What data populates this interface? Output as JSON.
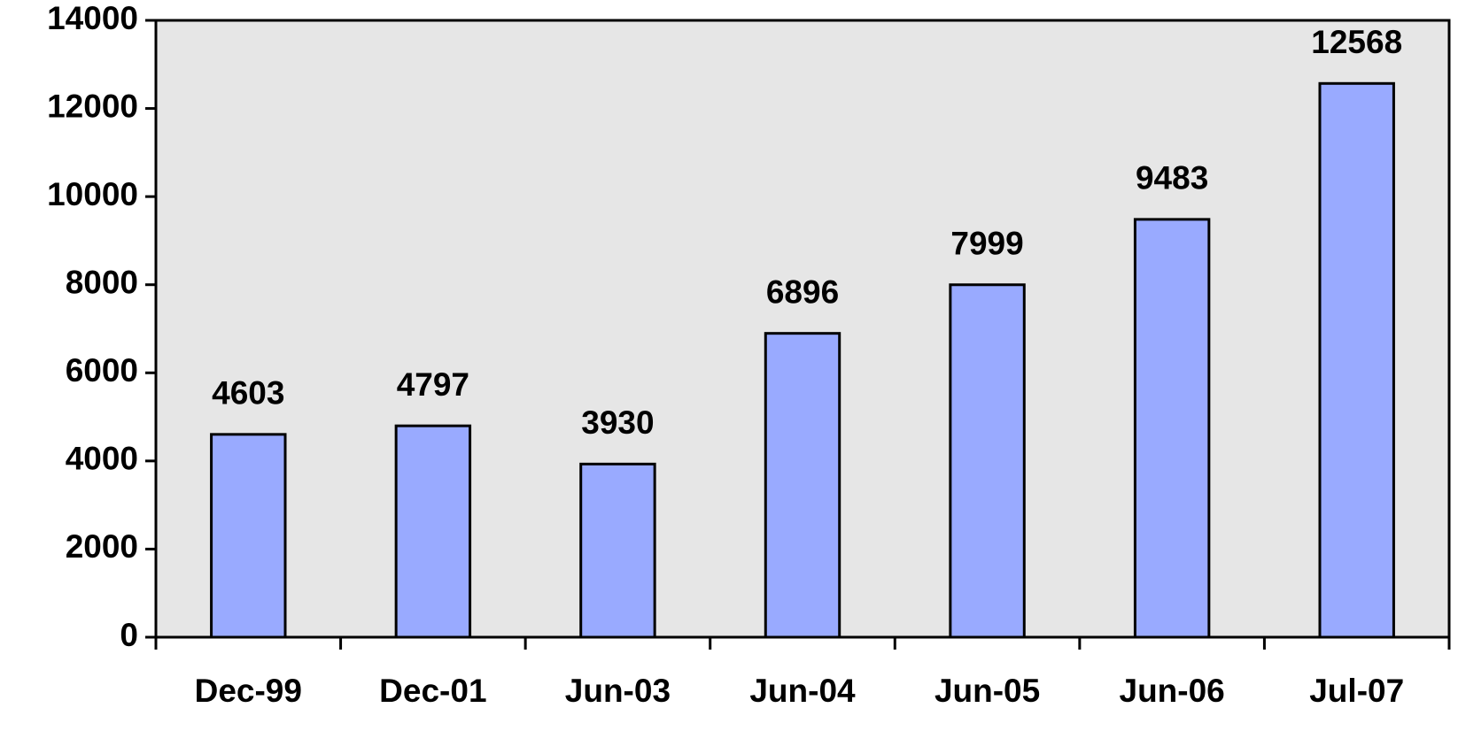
{
  "chart_data": {
    "type": "bar",
    "categories": [
      "Dec-99",
      "Dec-01",
      "Jun-03",
      "Jun-04",
      "Jun-05",
      "Jun-06",
      "Jul-07"
    ],
    "values": [
      4603,
      4797,
      3930,
      6896,
      7999,
      9483,
      12568
    ],
    "color": "#99aaff",
    "ylim": [
      0,
      14000
    ],
    "yticks": [
      0,
      2000,
      4000,
      6000,
      8000,
      10000,
      12000,
      14000
    ],
    "show_value_labels": true
  }
}
